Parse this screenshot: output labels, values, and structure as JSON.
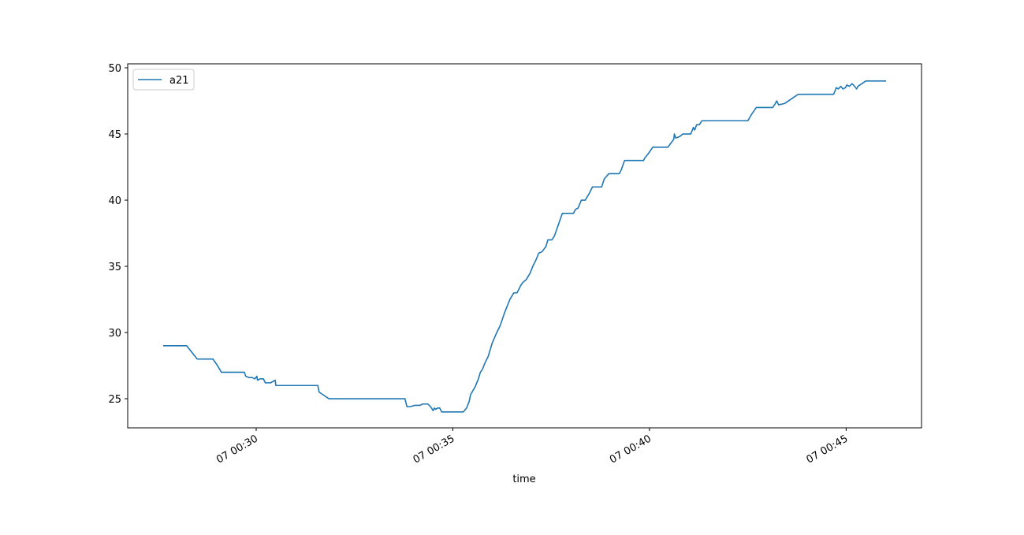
{
  "chart_data": {
    "type": "line",
    "x_label": "time",
    "x": [
      "07 00:27:38",
      "07 00:28:14",
      "07 00:28:30",
      "07 00:28:54",
      "07 00:29:01",
      "07 00:29:07",
      "07 00:29:42",
      "07 00:29:44",
      "07 00:29:49",
      "07 00:29:54",
      "07 00:29:58",
      "07 00:30:01",
      "07 00:30:02",
      "07 00:30:06",
      "07 00:30:11",
      "07 00:30:14",
      "07 00:30:22",
      "07 00:30:29",
      "07 00:30:30",
      "07 00:31:34",
      "07 00:31:36",
      "07 00:31:42",
      "07 00:31:51",
      "07 00:33:47",
      "07 00:33:50",
      "07 00:33:55",
      "07 00:34:02",
      "07 00:34:10",
      "07 00:34:14",
      "07 00:34:22",
      "07 00:34:26",
      "07 00:34:30",
      "07 00:34:32",
      "07 00:34:34",
      "07 00:34:37",
      "07 00:34:40",
      "07 00:34:43",
      "07 00:35:16",
      "07 00:35:21",
      "07 00:35:25",
      "07 00:35:27",
      "07 00:35:34",
      "07 00:35:39",
      "07 00:35:42",
      "07 00:35:45",
      "07 00:35:49",
      "07 00:35:54",
      "07 00:36:00",
      "07 00:36:07",
      "07 00:36:12",
      "07 00:36:19",
      "07 00:36:27",
      "07 00:36:33",
      "07 00:36:38",
      "07 00:36:43",
      "07 00:36:47",
      "07 00:36:52",
      "07 00:36:58",
      "07 00:37:02",
      "07 00:37:07",
      "07 00:37:11",
      "07 00:37:16",
      "07 00:37:22",
      "07 00:37:25",
      "07 00:37:31",
      "07 00:37:35",
      "07 00:37:40",
      "07 00:37:47",
      "07 00:38:04",
      "07 00:38:07",
      "07 00:38:11",
      "07 00:38:16",
      "07 00:38:22",
      "07 00:38:28",
      "07 00:38:33",
      "07 00:38:47",
      "07 00:38:51",
      "07 00:38:58",
      "07 00:39:14",
      "07 00:39:17",
      "07 00:39:22",
      "07 00:39:51",
      "07 00:39:53",
      "07 00:39:58",
      "07 00:40:05",
      "07 00:40:28",
      "07 00:40:34",
      "07 00:40:37",
      "07 00:40:38",
      "07 00:40:40",
      "07 00:40:46",
      "07 00:40:51",
      "07 00:41:03",
      "07 00:41:07",
      "07 00:41:09",
      "07 00:41:12",
      "07 00:41:16",
      "07 00:41:20",
      "07 00:42:30",
      "07 00:42:36",
      "07 00:42:43",
      "07 00:43:08",
      "07 00:43:12",
      "07 00:43:14",
      "07 00:43:17",
      "07 00:43:26",
      "07 00:43:32",
      "07 00:43:38",
      "07 00:43:47",
      "07 00:44:41",
      "07 00:44:45",
      "07 00:44:48",
      "07 00:44:52",
      "07 00:44:55",
      "07 00:44:59",
      "07 00:45:01",
      "07 00:45:05",
      "07 00:45:09",
      "07 00:45:13",
      "07 00:45:16",
      "07 00:45:18",
      "07 00:45:24",
      "07 00:45:30",
      "07 00:46:01"
    ],
    "series": [
      {
        "name": "a21",
        "color": "#1f77b4",
        "values": [
          29,
          29,
          28,
          28,
          27.5,
          27,
          27,
          26.7,
          26.6,
          26.6,
          26.5,
          26.7,
          26.4,
          26.5,
          26.5,
          26.2,
          26.2,
          26.4,
          26,
          26,
          25.5,
          25.3,
          25,
          25,
          24.4,
          24.4,
          24.5,
          24.5,
          24.6,
          24.6,
          24.4,
          24.1,
          24.3,
          24.2,
          24.3,
          24.3,
          24,
          24,
          24.3,
          24.8,
          25.3,
          25.9,
          26.5,
          27,
          27.2,
          27.7,
          28.2,
          29.2,
          30,
          30.5,
          31.5,
          32.5,
          33,
          33,
          33.5,
          33.8,
          34,
          34.5,
          35,
          35.5,
          36,
          36.1,
          36.5,
          37,
          37,
          37.3,
          38,
          39,
          39,
          39.3,
          39.4,
          40,
          40,
          40.5,
          41,
          41,
          41.6,
          42,
          42,
          42.3,
          43,
          43,
          43.2,
          43.5,
          44,
          44,
          44.4,
          44.6,
          45,
          44.7,
          44.8,
          45,
          45,
          45.5,
          45.3,
          45.7,
          45.7,
          46,
          46,
          46.5,
          47,
          47,
          47.3,
          47.5,
          47.2,
          47.3,
          47.5,
          47.7,
          48,
          48,
          48.5,
          48.4,
          48.6,
          48.4,
          48.5,
          48.7,
          48.6,
          48.8,
          48.6,
          48.4,
          48.6,
          48.8,
          49,
          49
        ]
      }
    ],
    "xlim": [
      "07 00:26:44",
      "07 00:46:55"
    ],
    "xticks": [
      "07 00:30",
      "07 00:35",
      "07 00:40",
      "07 00:45"
    ],
    "ylim": [
      22.8,
      50.3
    ],
    "yticks": [
      25,
      30,
      35,
      40,
      45,
      50
    ],
    "legend": "upper left",
    "grid": false
  }
}
